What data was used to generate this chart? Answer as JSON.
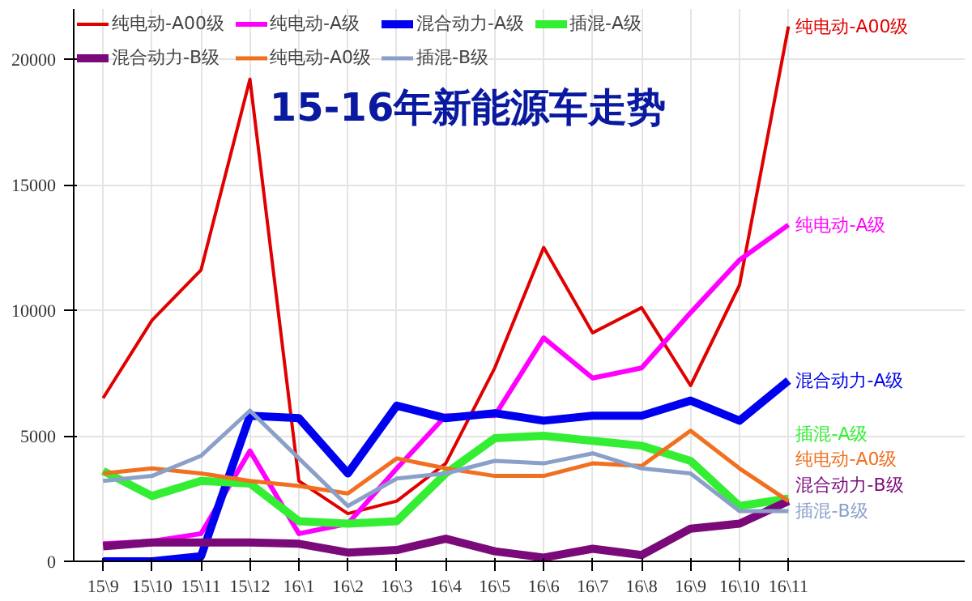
{
  "chart_data": {
    "type": "line",
    "title": "15-16年新能源车走势",
    "categories": [
      "15\\9",
      "15\\10",
      "15\\11",
      "15\\12",
      "16\\1",
      "16\\2",
      "16\\3",
      "16\\4",
      "16\\5",
      "16\\6",
      "16\\7",
      "16\\8",
      "16\\9",
      "16\\10",
      "16\\11"
    ],
    "series": [
      {
        "name": "纯电动-A00级",
        "color": "#e00000",
        "values": [
          6500,
          9600,
          11600,
          19200,
          3200,
          1900,
          2400,
          3900,
          7700,
          12500,
          9100,
          10100,
          7000,
          11000,
          21300
        ]
      },
      {
        "name": "纯电动-A级",
        "color": "#ff00ff",
        "values": [
          700,
          800,
          1100,
          4400,
          1100,
          1500,
          3700,
          5800,
          5800,
          8900,
          7300,
          7700,
          9900,
          12000,
          13400
        ]
      },
      {
        "name": "混合动力-A级",
        "color": "#0000ee",
        "values": [
          0,
          0,
          200,
          5800,
          5700,
          3500,
          6200,
          5700,
          5900,
          5600,
          5800,
          5800,
          6400,
          5600,
          7200
        ]
      },
      {
        "name": "插混-A级",
        "color": "#33ee33",
        "values": [
          3600,
          2600,
          3200,
          3100,
          1600,
          1500,
          1600,
          3500,
          4900,
          5000,
          4800,
          4600,
          4000,
          2200,
          2500
        ]
      },
      {
        "name": "混合动力-B级",
        "color": "#7a0a7a",
        "values": [
          600,
          750,
          750,
          750,
          700,
          350,
          450,
          900,
          400,
          150,
          500,
          250,
          1300,
          1500,
          2400
        ]
      },
      {
        "name": "纯电动-A0级",
        "color": "#f07020",
        "values": [
          3500,
          3700,
          3500,
          3200,
          3000,
          2700,
          4100,
          3700,
          3400,
          3400,
          3900,
          3800,
          5200,
          3700,
          2400
        ]
      },
      {
        "name": "插混-B级",
        "color": "#8aa0c8",
        "values": [
          3200,
          3400,
          4200,
          6000,
          4100,
          2200,
          3300,
          3500,
          4000,
          3900,
          4300,
          3700,
          3500,
          2000,
          2000
        ]
      }
    ],
    "ylim": [
      0,
      22000
    ],
    "yticks": [
      0,
      5000,
      10000,
      15000,
      20000
    ],
    "grid": true,
    "legend": "top",
    "marker": "none",
    "line_style": "solid"
  }
}
